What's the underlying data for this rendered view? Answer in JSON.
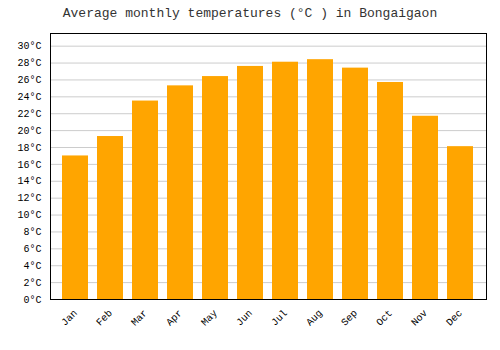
{
  "chart_data": {
    "type": "bar",
    "title": "Average monthly temperatures (°C ) in Bongaigaon",
    "categories": [
      "Jan",
      "Feb",
      "Mar",
      "Apr",
      "May",
      "Jun",
      "Jul",
      "Aug",
      "Sep",
      "Oct",
      "Nov",
      "Dec"
    ],
    "values": [
      17.0,
      19.3,
      23.5,
      25.3,
      26.4,
      27.6,
      28.1,
      28.4,
      27.4,
      25.7,
      21.7,
      18.1
    ],
    "color": "#FFA500",
    "ylim": [
      0,
      31.5
    ],
    "yticks": [
      {
        "value": 0,
        "label": "0°C"
      },
      {
        "value": 2,
        "label": "2°C"
      },
      {
        "value": 4,
        "label": "4°C"
      },
      {
        "value": 6,
        "label": "6°C"
      },
      {
        "value": 8,
        "label": "8°C"
      },
      {
        "value": 10,
        "label": "10°C"
      },
      {
        "value": 12,
        "label": "12°C"
      },
      {
        "value": 14,
        "label": "14°C"
      },
      {
        "value": 16,
        "label": "16°C"
      },
      {
        "value": 18,
        "label": "18°C"
      },
      {
        "value": 20,
        "label": "20°C"
      },
      {
        "value": 22,
        "label": "22°C"
      },
      {
        "value": 24,
        "label": "24°C"
      },
      {
        "value": 26,
        "label": "26°C"
      },
      {
        "value": 28,
        "label": "28°C"
      },
      {
        "value": 30,
        "label": "30°C"
      }
    ],
    "grid": true
  }
}
